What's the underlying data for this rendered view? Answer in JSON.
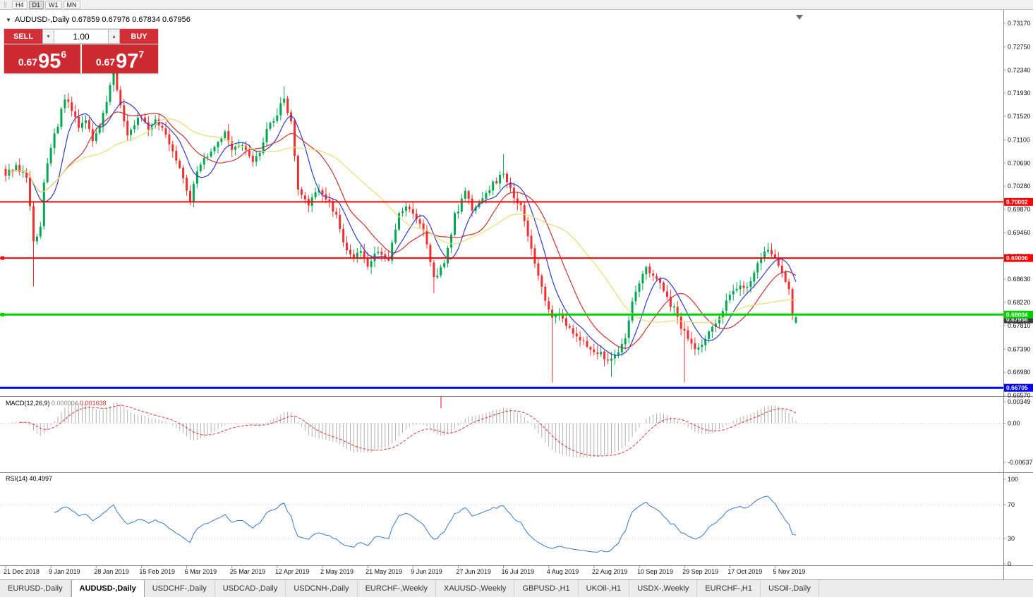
{
  "toolbar": {
    "timeframes": [
      "H4",
      "D1",
      "W1",
      "MN"
    ],
    "active": "D1"
  },
  "chart": {
    "title_line": "AUDUSD-,Daily 0.67859 0.67976 0.67834 0.67956"
  },
  "trade_panel": {
    "sell_label": "SELL",
    "buy_label": "BUY",
    "volume": "1.00",
    "sell_price": {
      "small": "0.67",
      "big": "95",
      "sup": "6"
    },
    "buy_price": {
      "small": "0.67",
      "big": "97",
      "sup": "7"
    }
  },
  "price_axis": [
    "0.73170",
    "0.72750",
    "0.72340",
    "0.71930",
    "0.71520",
    "0.71100",
    "0.70690",
    "0.70280",
    "0.69870",
    "0.69460",
    "0.69040",
    "0.68630",
    "0.68220",
    "0.67810",
    "0.67390",
    "0.66980",
    "0.66570"
  ],
  "macd": {
    "name": "MACD(12,26,9)",
    "value_main": "0.000004",
    "value_signal": "0.001638",
    "axis_labels": [
      "0.00349",
      "0.00",
      "-0.00637"
    ]
  },
  "rsi": {
    "name": "RSI(14)",
    "value": "40.4997",
    "axis_labels": [
      "100",
      "70",
      "30",
      "0"
    ]
  },
  "date_axis": [
    "21 Dec 2018",
    "9 Jan 2019",
    "28 Jan 2019",
    "15 Feb 2019",
    "6 Mar 2019",
    "25 Mar 2019",
    "12 Apr 2019",
    "2 May 2019",
    "21 May 2019",
    "9 Jun 2019",
    "27 Jun 2019",
    "16 Jul 2019",
    "4 Aug 2019",
    "22 Aug 2019",
    "10 Sep 2019",
    "29 Sep 2019",
    "17 Oct 2019",
    "5 Nov 2019"
  ],
  "tabs": {
    "active": "AUDUSD-,Daily",
    "items": [
      "EURUSD-,Daily",
      "AUDUSD-,Daily",
      "USDCHF-,Daily",
      "USDCAD-,Daily",
      "USDCNH-,Daily",
      "EURCHF-,Weekly",
      "XAUUSD-,Weekly",
      "GBPUSD-,H1",
      "UKOil-,H1",
      "USDX-,Weekly",
      "EURCHF-,H1",
      "USOil-,Daily"
    ]
  },
  "colors": {
    "candle_up": "#00a651",
    "candle_down": "#f03030",
    "ma_fast_blue": "#2c3ec8",
    "ma_mid_red": "#c83232",
    "ma_slow_yellow": "#e8df70",
    "macd_hist": "#b0b0b0",
    "macd_signal": "#d04040",
    "rsi_line": "#3a78c8",
    "trade_red": "#d32f39",
    "axis_text": "#111111"
  },
  "chart_data": {
    "type": "candlestick",
    "symbol": "AUDUSD",
    "timeframe": "Daily",
    "title": "AUDUSD-,Daily",
    "last_ohlc": {
      "open": 0.67859,
      "high": 0.67976,
      "low": 0.67834,
      "close": 0.67956
    },
    "price_axis_top": 0.7317,
    "price_axis_bottom": 0.6657,
    "candle_count": 228,
    "price_path_anchors": [
      [
        0,
        0.7052
      ],
      [
        3,
        0.7062
      ],
      [
        6,
        0.7046
      ],
      [
        8,
        0.693
      ],
      [
        10,
        0.6958
      ],
      [
        11,
        0.704
      ],
      [
        13,
        0.71
      ],
      [
        15,
        0.7135
      ],
      [
        17,
        0.7185
      ],
      [
        19,
        0.7165
      ],
      [
        21,
        0.7128
      ],
      [
        23,
        0.715
      ],
      [
        25,
        0.7113
      ],
      [
        27,
        0.7135
      ],
      [
        29,
        0.718
      ],
      [
        31,
        0.7228
      ],
      [
        33,
        0.717
      ],
      [
        35,
        0.712
      ],
      [
        37,
        0.714
      ],
      [
        39,
        0.7152
      ],
      [
        41,
        0.7128
      ],
      [
        43,
        0.7145
      ],
      [
        45,
        0.7135
      ],
      [
        47,
        0.7105
      ],
      [
        50,
        0.7058
      ],
      [
        52,
        0.7022
      ],
      [
        53,
        0.7005
      ],
      [
        55,
        0.7058
      ],
      [
        57,
        0.7075
      ],
      [
        59,
        0.709
      ],
      [
        61,
        0.7108
      ],
      [
        63,
        0.7122
      ],
      [
        65,
        0.7095
      ],
      [
        68,
        0.7103
      ],
      [
        71,
        0.7075
      ],
      [
        73,
        0.7092
      ],
      [
        75,
        0.713
      ],
      [
        78,
        0.7158
      ],
      [
        80,
        0.7185
      ],
      [
        82,
        0.714
      ],
      [
        84,
        0.7022
      ],
      [
        87,
        0.6996
      ],
      [
        90,
        0.7022
      ],
      [
        93,
        0.6998
      ],
      [
        95,
        0.6975
      ],
      [
        97,
        0.6928
      ],
      [
        100,
        0.6902
      ],
      [
        102,
        0.6912
      ],
      [
        104,
        0.689
      ],
      [
        107,
        0.6915
      ],
      [
        110,
        0.69
      ],
      [
        113,
        0.6975
      ],
      [
        115,
        0.699
      ],
      [
        117,
        0.6984
      ],
      [
        120,
        0.695
      ],
      [
        123,
        0.6864
      ],
      [
        126,
        0.689
      ],
      [
        129,
        0.6975
      ],
      [
        132,
        0.7015
      ],
      [
        134,
        0.699
      ],
      [
        137,
        0.7002
      ],
      [
        140,
        0.7034
      ],
      [
        143,
        0.7048
      ],
      [
        145,
        0.702
      ],
      [
        148,
        0.699
      ],
      [
        151,
        0.692
      ],
      [
        153,
        0.687
      ],
      [
        155,
        0.6827
      ],
      [
        157,
        0.679
      ],
      [
        159,
        0.6805
      ],
      [
        161,
        0.6783
      ],
      [
        163,
        0.677
      ],
      [
        165,
        0.6758
      ],
      [
        167,
        0.6746
      ],
      [
        170,
        0.6733
      ],
      [
        173,
        0.6721
      ],
      [
        176,
        0.673
      ],
      [
        178,
        0.6758
      ],
      [
        180,
        0.682
      ],
      [
        182,
        0.6855
      ],
      [
        184,
        0.688
      ],
      [
        186,
        0.6867
      ],
      [
        188,
        0.6855
      ],
      [
        190,
        0.6828
      ],
      [
        192,
        0.681
      ],
      [
        194,
        0.6775
      ],
      [
        196,
        0.6762
      ],
      [
        198,
        0.674
      ],
      [
        200,
        0.6752
      ],
      [
        202,
        0.677
      ],
      [
        204,
        0.6785
      ],
      [
        206,
        0.681
      ],
      [
        208,
        0.6835
      ],
      [
        210,
        0.685
      ],
      [
        212,
        0.6845
      ],
      [
        214,
        0.6858
      ],
      [
        216,
        0.6895
      ],
      [
        218,
        0.6915
      ],
      [
        220,
        0.6908
      ],
      [
        221,
        0.69
      ],
      [
        223,
        0.688
      ],
      [
        225,
        0.6845
      ],
      [
        226,
        0.68
      ],
      [
        227,
        0.67956
      ]
    ],
    "wick_overrides": [
      {
        "i": 8,
        "low": 0.685
      },
      {
        "i": 31,
        "high": 0.7242
      },
      {
        "i": 80,
        "high": 0.7205
      },
      {
        "i": 123,
        "low": 0.6838
      },
      {
        "i": 143,
        "high": 0.7085
      },
      {
        "i": 157,
        "low": 0.668
      },
      {
        "i": 174,
        "low": 0.669
      },
      {
        "i": 195,
        "low": 0.668
      }
    ],
    "hlines": [
      {
        "price": 0.70002,
        "color": "#ff0000",
        "width": 2,
        "label": "0.70002",
        "handle": false
      },
      {
        "price": 0.69006,
        "color": "#ff0000",
        "width": 2,
        "label": "0.69006",
        "handle": true
      },
      {
        "price": 0.68004,
        "color": "#00d000",
        "width": 3,
        "label": "0.68004",
        "handle": true
      },
      {
        "price": 0.66705,
        "color": "#0000ff",
        "width": 3,
        "label": "0.66705",
        "handle": false
      }
    ],
    "current_price": {
      "value": "0.67956",
      "color": "#3c3c3c"
    },
    "indicators": {
      "ma": [
        {
          "period": 8,
          "color_key": "ma_fast_blue"
        },
        {
          "period": 16,
          "color_key": "ma_mid_red"
        },
        {
          "period": 34,
          "color_key": "ma_slow_yellow"
        }
      ],
      "macd_params": {
        "fast": 12,
        "slow": 26,
        "signal": 9
      },
      "rsi_period": 14
    }
  }
}
